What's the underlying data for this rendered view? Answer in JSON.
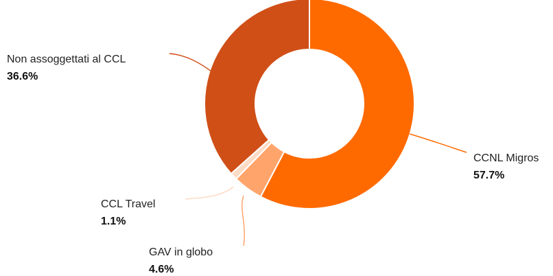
{
  "chart_data": {
    "type": "pie",
    "donut": true,
    "title": "",
    "unit": "%",
    "slices": [
      {
        "label": "CCNL Migros",
        "value": 57.7,
        "value_label": "57.7%",
        "color": "#FF6A00"
      },
      {
        "label": "GAV in globo",
        "value": 4.6,
        "value_label": "4.6%",
        "color": "#FFA46B"
      },
      {
        "label": "CCL Travel",
        "value": 1.1,
        "value_label": "1.1%",
        "color": "#FDDCC5"
      },
      {
        "label": "Non assoggettati al CCL",
        "value": 36.6,
        "value_label": "36.6%",
        "color": "#D04F17"
      }
    ],
    "start_angle": "12 o'clock",
    "direction": "clockwise",
    "legend": "none",
    "label_placement": "outside with leader lines"
  }
}
